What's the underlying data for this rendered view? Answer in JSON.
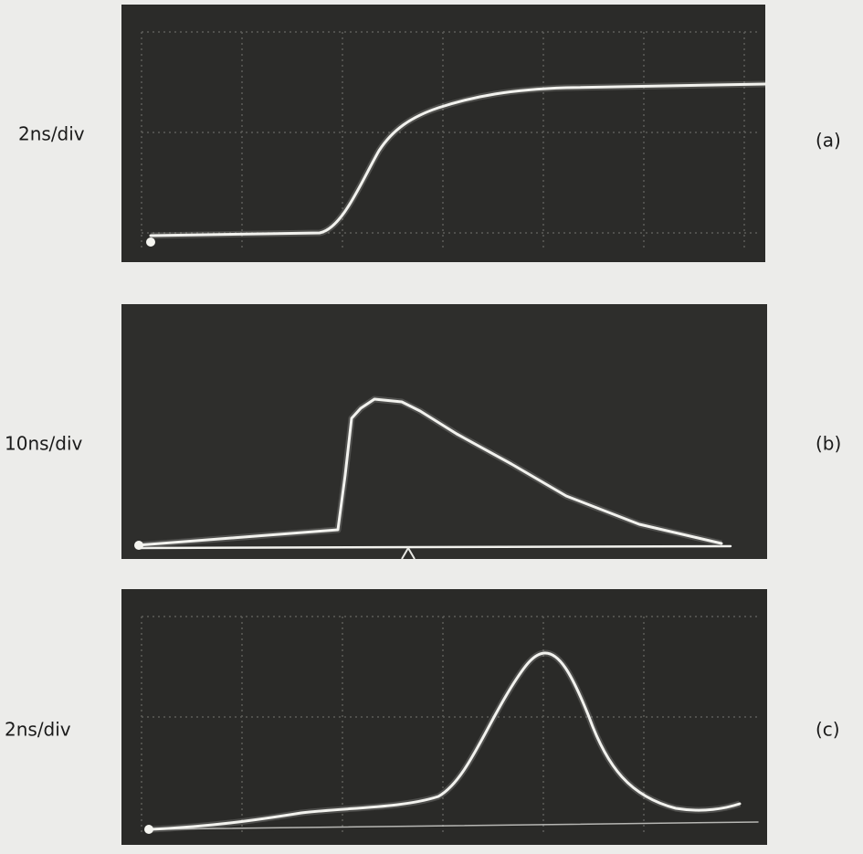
{
  "panels": [
    {
      "scale": "2ns/div",
      "label": "(a)"
    },
    {
      "scale": "10ns/div",
      "label": "(b)"
    },
    {
      "scale": "2ns/div",
      "label": "(c)"
    }
  ]
}
